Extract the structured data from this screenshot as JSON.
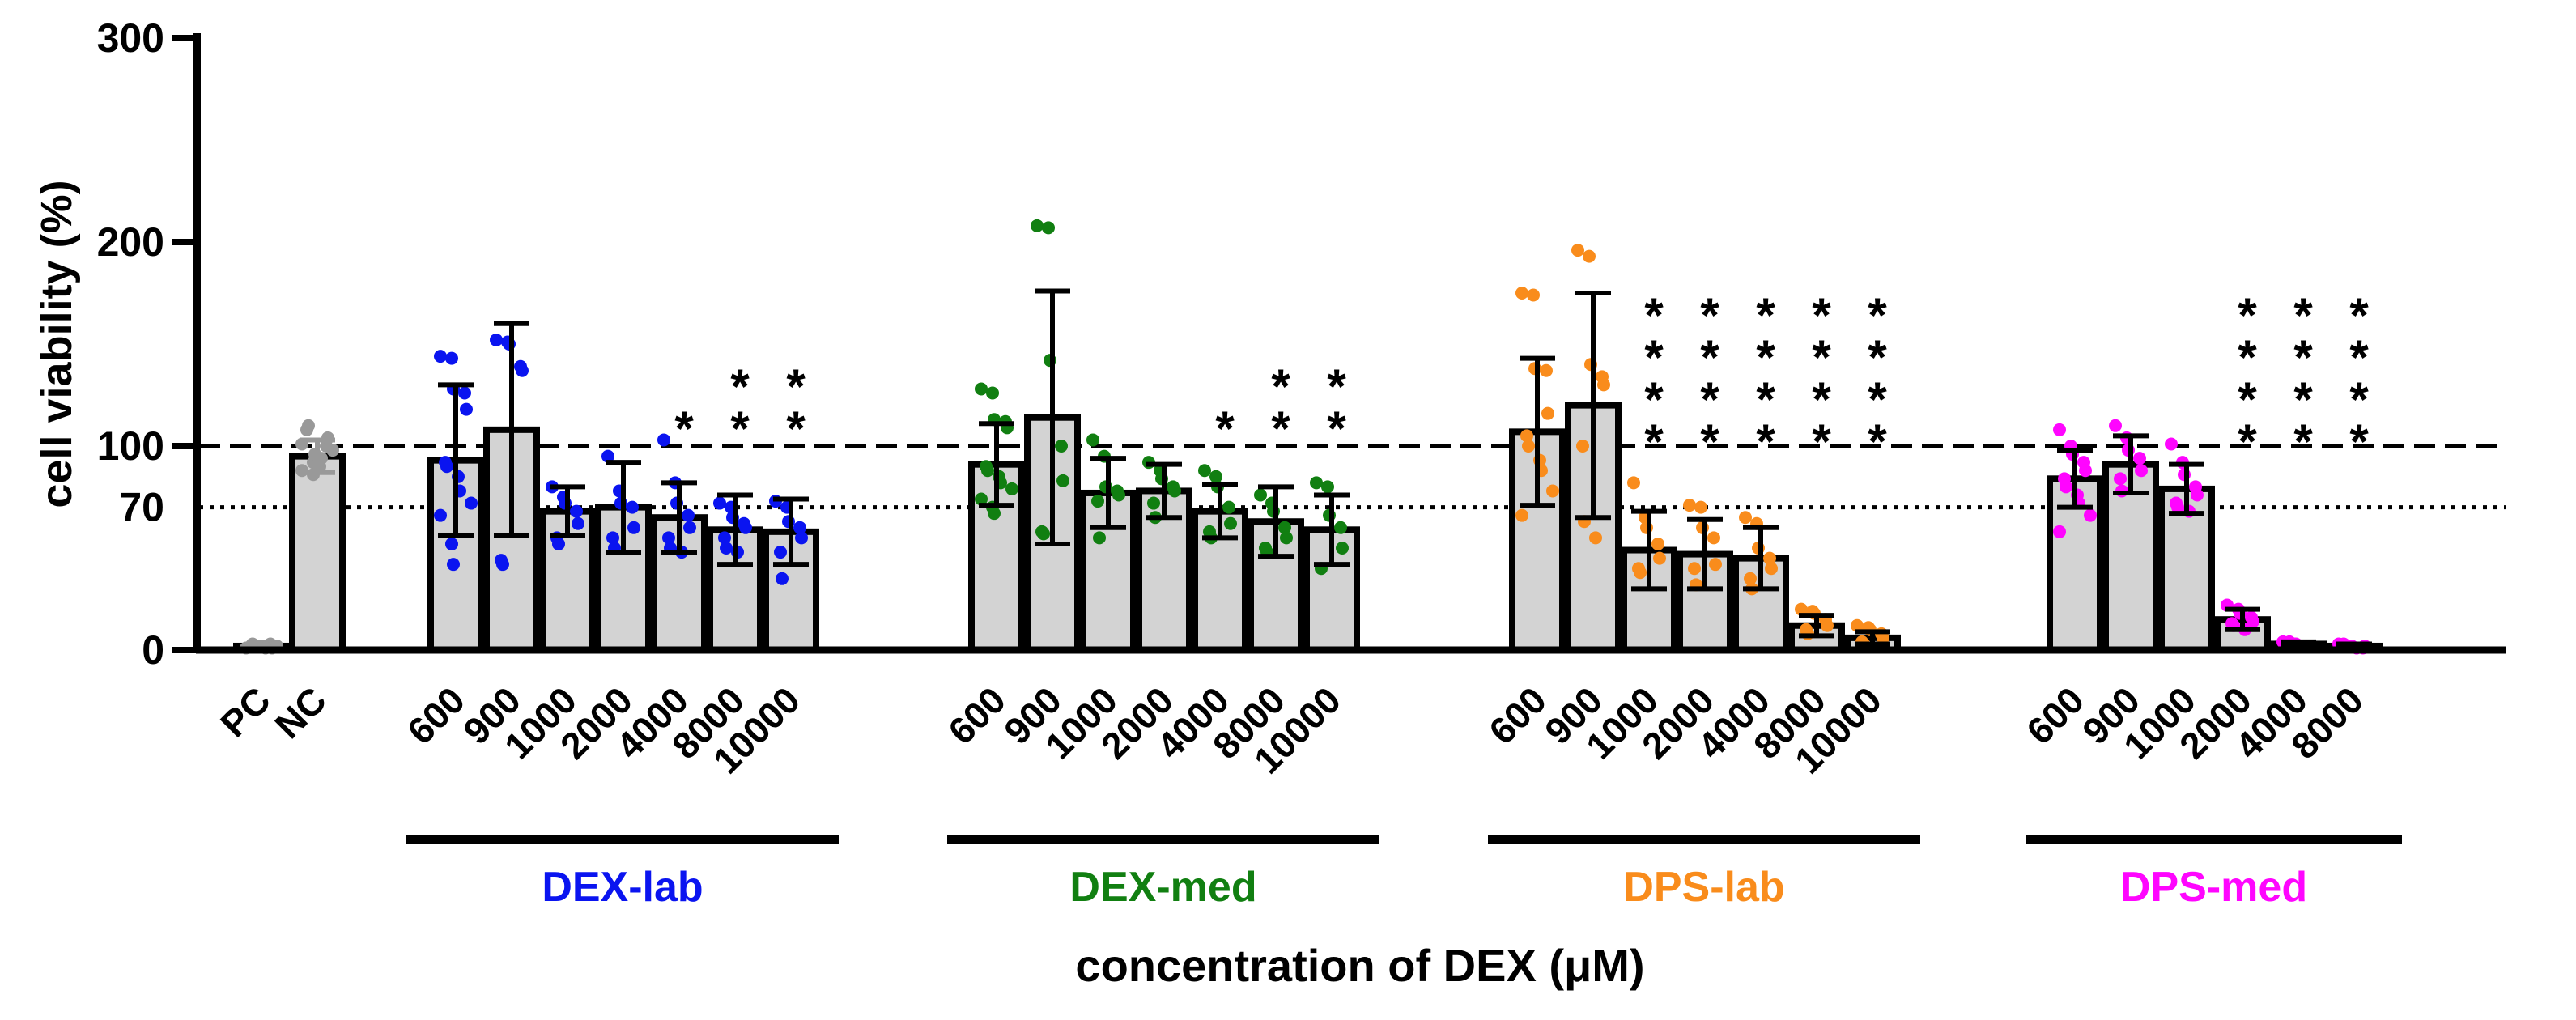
{
  "chart_data": {
    "type": "bar",
    "ylabel": "cell viability (%)",
    "xlabel": "concentration of DEX (μM)",
    "ylim": [
      0,
      300
    ],
    "yticks": [
      0,
      70,
      100,
      200,
      300
    ],
    "reference_lines": [
      {
        "value": 100,
        "style": "dashed"
      },
      {
        "value": 70,
        "style": "dotted"
      }
    ],
    "bar_fill": "#d3d3d3",
    "groups": [
      {
        "name": "",
        "color": "#999999",
        "categories": [
          "PC",
          "NC"
        ],
        "means": [
          2,
          95
        ],
        "sd": [
          0,
          8
        ],
        "stars": [
          0,
          0
        ],
        "points": [
          [
            1,
            2,
            2,
            3,
            1,
            2,
            3,
            2,
            1,
            2
          ],
          [
            88,
            92,
            96,
            100,
            104,
            108,
            110,
            90,
            94,
            98,
            101,
            86
          ]
        ]
      },
      {
        "name": "DEX-lab",
        "color": "#0a14f0",
        "categories": [
          "600",
          "900",
          "1000",
          "2000",
          "4000",
          "8000",
          "10000"
        ],
        "means": [
          93,
          108,
          68,
          70,
          65,
          59,
          58
        ],
        "sd": [
          37,
          52,
          12,
          22,
          17,
          17,
          16
        ],
        "stars": [
          0,
          0,
          0,
          0,
          1,
          2,
          2
        ],
        "points": [
          [
            144,
            143,
            128,
            126,
            118,
            92,
            90,
            85,
            78,
            72,
            66,
            52,
            42
          ],
          [
            152,
            151,
            150,
            139,
            137,
            44,
            42
          ],
          [
            80,
            75,
            72,
            68,
            62,
            55,
            52
          ],
          [
            95,
            78,
            72,
            70,
            60,
            55,
            50
          ],
          [
            103,
            82,
            72,
            66,
            60,
            55,
            50,
            48
          ],
          [
            72,
            70,
            65,
            62,
            60,
            55,
            50,
            48
          ],
          [
            73,
            70,
            63,
            60,
            55,
            48,
            35
          ]
        ]
      },
      {
        "name": "DEX-med",
        "color": "#117f11",
        "categories": [
          "600",
          "900",
          "1000",
          "2000",
          "4000",
          "8000",
          "10000"
        ],
        "means": [
          91,
          114,
          77,
          78,
          68,
          63,
          59
        ],
        "sd": [
          20,
          62,
          17,
          13,
          13,
          17,
          17
        ],
        "stars": [
          0,
          0,
          0,
          0,
          1,
          2,
          2
        ],
        "points": [
          [
            128,
            126,
            113,
            112,
            109,
            90,
            88,
            85,
            82,
            79,
            74,
            70,
            67
          ],
          [
            208,
            207,
            142,
            100,
            83,
            58,
            57
          ],
          [
            103,
            95,
            80,
            78,
            76,
            73,
            55
          ],
          [
            92,
            88,
            84,
            80,
            78,
            72,
            65
          ],
          [
            88,
            85,
            80,
            70,
            62,
            58,
            55
          ],
          [
            76,
            72,
            68,
            60,
            55,
            50,
            48
          ],
          [
            82,
            80,
            66,
            60,
            50,
            40
          ]
        ]
      },
      {
        "name": "DPS-lab",
        "color": "#f98c1c",
        "categories": [
          "600",
          "900",
          "1000",
          "2000",
          "4000",
          "8000",
          "10000"
        ],
        "means": [
          107,
          120,
          49,
          47,
          45,
          12,
          6
        ],
        "sd": [
          36,
          55,
          19,
          17,
          15,
          5,
          3
        ],
        "stars": [
          0,
          0,
          4,
          4,
          4,
          4,
          4
        ],
        "points": [
          [
            175,
            174,
            138,
            137,
            116,
            105,
            100,
            93,
            88,
            78,
            66
          ],
          [
            196,
            193,
            140,
            134,
            130,
            100,
            63,
            55
          ],
          [
            82,
            65,
            60,
            52,
            45,
            40,
            38
          ],
          [
            71,
            70,
            60,
            55,
            42,
            40,
            32
          ],
          [
            65,
            62,
            50,
            45,
            40,
            35,
            30
          ],
          [
            20,
            19,
            18,
            15,
            12,
            10,
            8
          ],
          [
            12,
            11,
            10,
            8,
            6,
            4,
            3
          ]
        ]
      },
      {
        "name": "DPS-med",
        "color": "#ff05ff",
        "categories": [
          "600",
          "900",
          "1000",
          "2000",
          "4000",
          "8000"
        ],
        "means": [
          84,
          91,
          79,
          15,
          3,
          2
        ],
        "sd": [
          14,
          14,
          12,
          5,
          1,
          1
        ],
        "stars": [
          0,
          0,
          0,
          4,
          4,
          4
        ],
        "points": [
          [
            108,
            100,
            96,
            92,
            88,
            84,
            80,
            76,
            72,
            66,
            58
          ],
          [
            110,
            104,
            98,
            94,
            88,
            84,
            78
          ],
          [
            101,
            92,
            86,
            80,
            76,
            72,
            70,
            68
          ],
          [
            22,
            20,
            18,
            16,
            14,
            13,
            12,
            10
          ],
          [
            4,
            3,
            3,
            2,
            2,
            3,
            4,
            2
          ],
          [
            3,
            2,
            2,
            1,
            2,
            3,
            2,
            1
          ]
        ]
      }
    ]
  }
}
